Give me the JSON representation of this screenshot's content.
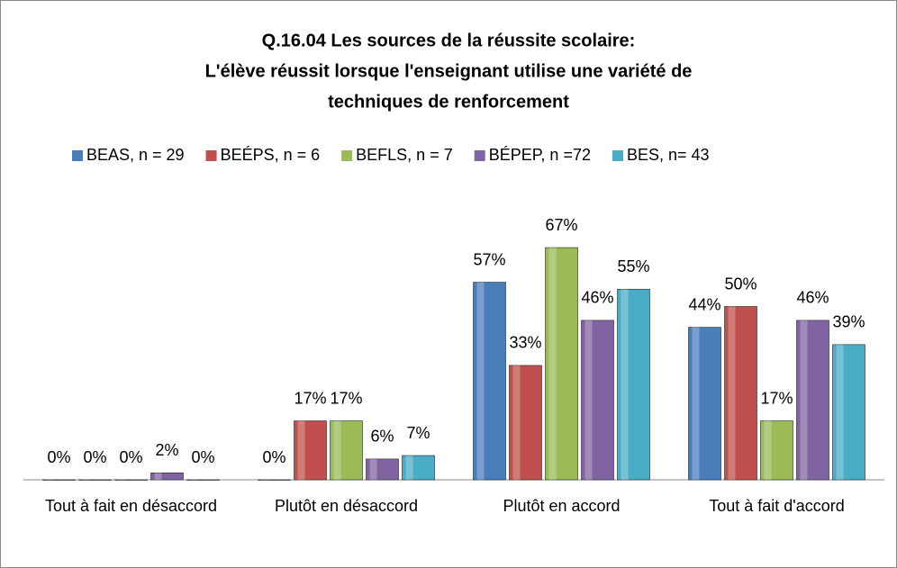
{
  "chart_data": {
    "type": "bar",
    "title": [
      "Q.16.04 Les sources de la réussite scolaire:",
      "L'élève réussit lorsque l'enseignant utilise une variété de",
      "techniques de renforcement"
    ],
    "categories": [
      "Tout à fait en désaccord",
      "Plutôt en désaccord",
      "Plutôt  en accord",
      "Tout à fait d'accord"
    ],
    "series": [
      {
        "name": "BEAS, n = 29",
        "color": "#4a7ebb",
        "values": [
          0,
          0,
          57,
          44
        ],
        "value_labels": [
          "0%",
          "0%",
          "57%",
          "44%"
        ]
      },
      {
        "name": "BEÉPS, n = 6",
        "color": "#c0504d",
        "values": [
          0,
          17,
          33,
          50
        ],
        "value_labels": [
          "0%",
          "17%",
          "33%",
          "50%"
        ]
      },
      {
        "name": "BEFLS, n = 7",
        "color": "#9bbb59",
        "values": [
          0,
          17,
          67,
          17
        ],
        "value_labels": [
          "0%",
          "17%",
          "67%",
          "17%"
        ]
      },
      {
        "name": "BÉPEP, n =72",
        "color": "#8064a2",
        "values": [
          2,
          6,
          46,
          46
        ],
        "value_labels": [
          "2%",
          "6%",
          "46%",
          "46%"
        ]
      },
      {
        "name": "BES, n= 43",
        "color": "#4bacc6",
        "values": [
          0,
          7,
          55,
          39
        ],
        "value_labels": [
          "0%",
          "7%",
          "55%",
          "39%"
        ]
      }
    ],
    "legend": "top"
  }
}
